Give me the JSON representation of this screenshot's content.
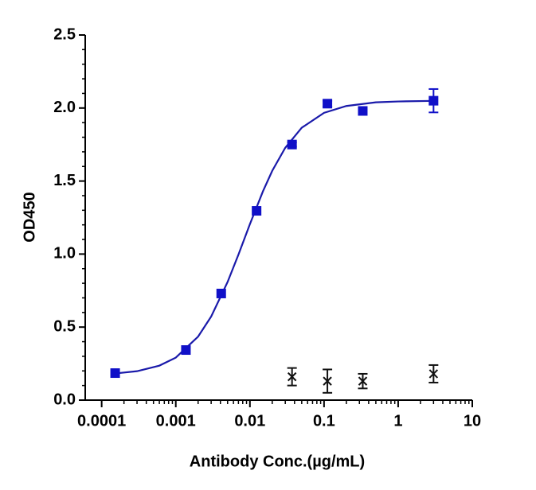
{
  "chart_data": {
    "type": "scatter",
    "x_label": "Antibody Conc.(µg/mL)",
    "y_label": "OD450",
    "xscale": "log",
    "xlim": [
      6e-05,
      10
    ],
    "ylim": [
      0,
      2.5
    ],
    "xticks": [
      0.0001,
      0.001,
      0.01,
      0.1,
      1,
      10
    ],
    "xminorticks": [
      0.0002,
      0.0003,
      0.0004,
      0.0005,
      0.0006,
      0.0007,
      0.0008,
      0.0009,
      0.002,
      0.003,
      0.004,
      0.005,
      0.006,
      0.007,
      0.008,
      0.009,
      0.02,
      0.03,
      0.04,
      0.05,
      0.06,
      0.07,
      0.08,
      0.09,
      0.2,
      0.3,
      0.4,
      0.5,
      0.6,
      0.7,
      0.8,
      0.9,
      2,
      3,
      4,
      5,
      6,
      7,
      8,
      9
    ],
    "yticks": [
      {
        "value": 0,
        "label": "0.0"
      },
      0.5,
      {
        "value": 1,
        "label": "1.0"
      },
      1.5,
      {
        "value": 2,
        "label": "2.0"
      },
      2.5
    ],
    "yminorticks": [
      0.1,
      0.2,
      0.3,
      0.4,
      0.6,
      0.7,
      0.8,
      0.9,
      1.1,
      1.2,
      1.3,
      1.4,
      1.6,
      1.7,
      1.8,
      1.9,
      2.1,
      2.2,
      2.3,
      2.4
    ],
    "series": [
      {
        "color": "#1010c8",
        "marker": "square",
        "x": [
          0.000152,
          0.00137,
          0.0041,
          0.0123,
          0.037,
          0.111,
          0.333,
          3
        ],
        "values": [
          0.185,
          0.343,
          0.73,
          1.296,
          1.75,
          2.03,
          1.98,
          2.05
        ],
        "errors": [
          0,
          0,
          0,
          0,
          0.015,
          0.02,
          0,
          0.08
        ]
      },
      {
        "color": "#111111",
        "marker": "cross",
        "x": [
          0.037,
          0.111,
          0.333,
          3
        ],
        "values": [
          0.16,
          0.13,
          0.13,
          0.18
        ],
        "errors": [
          0.06,
          0.08,
          0.05,
          0.06
        ]
      }
    ],
    "fit": {
      "color": "#1a1aaa",
      "x": [
        0.00015,
        0.0003,
        0.0006,
        0.001,
        0.002,
        0.003,
        0.005,
        0.007,
        0.01,
        0.015,
        0.02,
        0.03,
        0.05,
        0.1,
        0.2,
        0.5,
        1,
        3
      ],
      "values": [
        0.182,
        0.198,
        0.236,
        0.291,
        0.435,
        0.572,
        0.809,
        0.996,
        1.205,
        1.43,
        1.57,
        1.728,
        1.865,
        1.967,
        2.014,
        2.039,
        2.045,
        2.049
      ]
    }
  }
}
